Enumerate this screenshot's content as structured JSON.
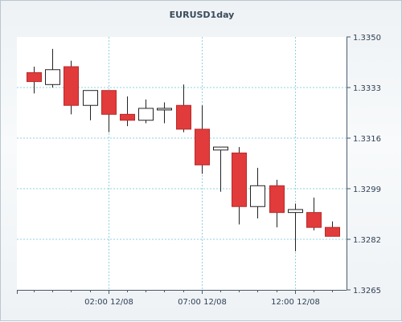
{
  "chart_data": {
    "type": "candlestick",
    "title": "EURUSD1day",
    "y_axis_position": "right",
    "ylim": [
      1.3265,
      1.335
    ],
    "y_ticks": [
      "1.3350",
      "1.3333",
      "1.3316",
      "1.3299",
      "1.3282",
      "1.3265"
    ],
    "x_ticks": [
      "02:00 12/08",
      "07:00 12/08",
      "12:00 12/08"
    ],
    "grid": true,
    "colors": {
      "up": "#ffffff",
      "down": "#e23b3b",
      "grid": "#8fd3df",
      "axis": "#4a5a6a"
    },
    "candles": [
      {
        "open": 1.3338,
        "high": 1.334,
        "low": 1.3331,
        "close": 1.3335
      },
      {
        "open": 1.3334,
        "high": 1.3346,
        "low": 1.3333,
        "close": 1.3339
      },
      {
        "open": 1.334,
        "high": 1.3342,
        "low": 1.3324,
        "close": 1.3327
      },
      {
        "open": 1.3327,
        "high": 1.3332,
        "low": 1.3322,
        "close": 1.3332
      },
      {
        "open": 1.3332,
        "high": 1.3332,
        "low": 1.3318,
        "close": 1.3324
      },
      {
        "open": 1.3324,
        "high": 1.333,
        "low": 1.332,
        "close": 1.3322
      },
      {
        "open": 1.3322,
        "high": 1.3329,
        "low": 1.3321,
        "close": 1.3326
      },
      {
        "open": 1.3326,
        "high": 1.3328,
        "low": 1.3321,
        "close": 1.3326
      },
      {
        "open": 1.3327,
        "high": 1.3334,
        "low": 1.3318,
        "close": 1.3319
      },
      {
        "open": 1.3319,
        "high": 1.3327,
        "low": 1.3304,
        "close": 1.3307
      },
      {
        "open": 1.3312,
        "high": 1.3313,
        "low": 1.3298,
        "close": 1.3313
      },
      {
        "open": 1.3311,
        "high": 1.3313,
        "low": 1.3287,
        "close": 1.3293
      },
      {
        "open": 1.3293,
        "high": 1.3306,
        "low": 1.3289,
        "close": 1.33
      },
      {
        "open": 1.33,
        "high": 1.3302,
        "low": 1.3286,
        "close": 1.3291
      },
      {
        "open": 1.3291,
        "high": 1.3294,
        "low": 1.3278,
        "close": 1.3292
      },
      {
        "open": 1.3291,
        "high": 1.3296,
        "low": 1.3285,
        "close": 1.3286
      },
      {
        "open": 1.3286,
        "high": 1.3288,
        "low": 1.3283,
        "close": 1.3283
      }
    ]
  }
}
